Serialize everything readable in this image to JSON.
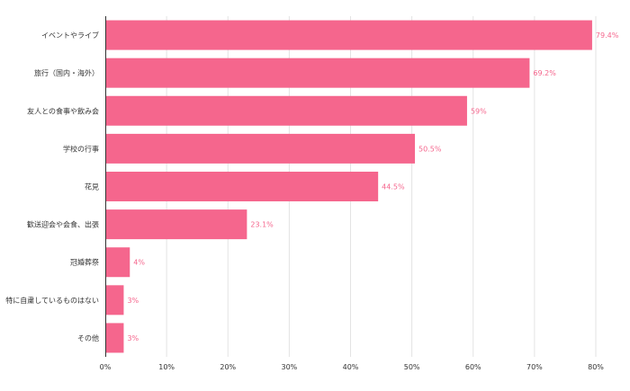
{
  "chart_data": {
    "type": "bar",
    "orientation": "horizontal",
    "title": "",
    "xlabel": "",
    "ylabel": "",
    "categories": [
      "イベントやライブ",
      "旅行（国内・海外）",
      "友人との食事や飲み会",
      "学校の行事",
      "花見",
      "歓送迎会や会食、出張",
      "冠婚葬祭",
      "特に自粛しているものはない",
      "その他"
    ],
    "values": [
      79.4,
      69.2,
      59,
      50.5,
      44.5,
      23.1,
      4,
      3,
      3
    ],
    "value_labels": [
      "79.4%",
      "69.2%",
      "59%",
      "50.5%",
      "44.5%",
      "23.1%",
      "4%",
      "3%",
      "3%"
    ],
    "xlim": [
      0,
      80
    ],
    "xticks": [
      0,
      10,
      20,
      30,
      40,
      50,
      60,
      70,
      80
    ],
    "xtick_labels": [
      "0%",
      "10%",
      "20%",
      "30%",
      "40%",
      "50%",
      "60%",
      "70%",
      "80%"
    ],
    "grid": true,
    "legend": "none",
    "bar_color": "#f5668d",
    "label_color": "#f5668d"
  }
}
